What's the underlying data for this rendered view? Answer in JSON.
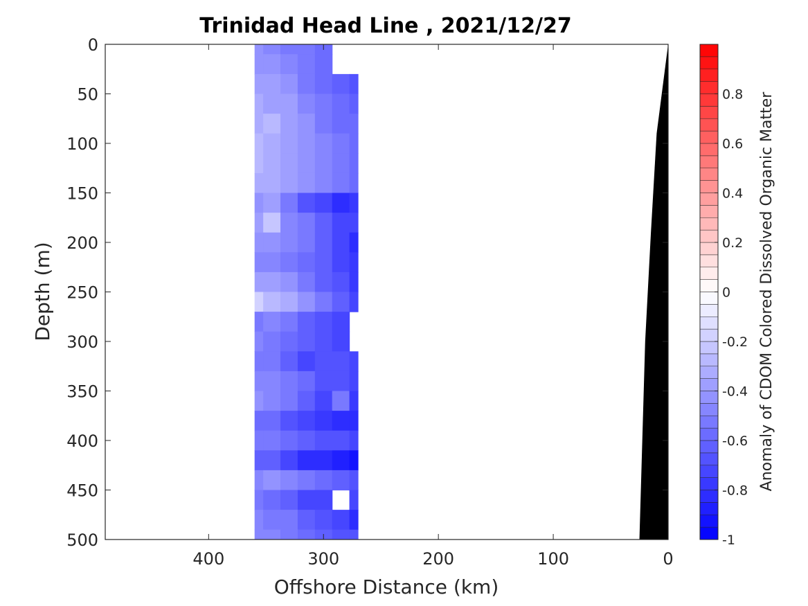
{
  "chart_data": {
    "type": "heatmap",
    "title": "Trinidad Head Line , 2021/12/27",
    "xlabel": "Offshore Distance (km)",
    "ylabel": "Depth (m)",
    "xlim": [
      490,
      0
    ],
    "ylim": [
      0,
      500
    ],
    "x_reversed": true,
    "y_reversed": true,
    "x_ticks": [
      400,
      300,
      200,
      100,
      0
    ],
    "y_ticks": [
      0,
      50,
      100,
      150,
      200,
      250,
      300,
      350,
      400,
      450,
      500
    ],
    "x_tick_labels": [
      "400",
      "300",
      "200",
      "100",
      "0"
    ],
    "y_tick_labels": [
      "0",
      "50",
      "100",
      "150",
      "200",
      "250",
      "300",
      "350",
      "400",
      "450",
      "500"
    ],
    "colorbar": {
      "label": "Anomaly of CDOM Colored Dissolved Organic Matter",
      "range": [
        -1,
        1
      ],
      "levels": 40,
      "ticks": [
        -1,
        -0.8,
        -0.6,
        -0.4,
        -0.2,
        0,
        0.2,
        0.4,
        0.6,
        0.8
      ],
      "tick_labels": [
        "-1",
        "-0.8",
        "-0.6",
        "-0.4",
        "-0.2",
        "0",
        "0.2",
        "0.4",
        "0.6",
        "0.8"
      ],
      "colormap": "blue-white-red",
      "low_color": "#0000ff",
      "mid_color": "#ffffff",
      "high_color": "#ff0000"
    },
    "data_extent": {
      "x_min_km": 270,
      "x_max_km": 360,
      "depth_min_m": 0,
      "depth_max_m": 500
    },
    "columns_x_km": [
      360,
      345,
      330,
      315,
      300,
      285,
      270
    ],
    "rows_depth_m": [
      0,
      20,
      40,
      60,
      80,
      100,
      120,
      140,
      160,
      180,
      200,
      220,
      240,
      260,
      280,
      300,
      320,
      340,
      360,
      380,
      400,
      420,
      440,
      460,
      480,
      500
    ],
    "values": [
      [
        -0.45,
        -0.48,
        -0.52,
        -0.55,
        -0.58,
        null,
        null
      ],
      [
        -0.42,
        -0.45,
        -0.5,
        -0.55,
        -0.6,
        null,
        null
      ],
      [
        -0.38,
        -0.4,
        -0.45,
        -0.52,
        -0.58,
        -0.62,
        -0.66
      ],
      [
        -0.35,
        -0.36,
        -0.4,
        -0.48,
        -0.55,
        -0.6,
        -0.63
      ],
      [
        -0.33,
        -0.3,
        -0.38,
        -0.45,
        -0.52,
        -0.58,
        -0.6
      ],
      [
        -0.3,
        -0.32,
        -0.36,
        -0.44,
        -0.5,
        -0.55,
        -0.6
      ],
      [
        -0.3,
        -0.32,
        -0.36,
        -0.42,
        -0.48,
        -0.54,
        -0.58
      ],
      [
        -0.33,
        -0.34,
        -0.38,
        -0.42,
        -0.48,
        -0.55,
        -0.58
      ],
      [
        -0.45,
        -0.4,
        -0.52,
        -0.7,
        -0.75,
        -0.8,
        -0.78
      ],
      [
        -0.4,
        -0.25,
        -0.48,
        -0.55,
        -0.62,
        -0.72,
        -0.75
      ],
      [
        -0.45,
        -0.42,
        -0.46,
        -0.55,
        -0.65,
        -0.75,
        -0.8
      ],
      [
        -0.5,
        -0.48,
        -0.52,
        -0.58,
        -0.62,
        -0.72,
        -0.76
      ],
      [
        -0.38,
        -0.4,
        -0.45,
        -0.55,
        -0.62,
        -0.7,
        -0.78
      ],
      [
        -0.2,
        -0.28,
        -0.35,
        -0.45,
        -0.55,
        -0.65,
        -0.75
      ],
      [
        -0.55,
        -0.5,
        -0.55,
        -0.62,
        -0.7,
        -0.75,
        null
      ],
      [
        -0.5,
        -0.52,
        -0.58,
        -0.62,
        -0.68,
        -0.72,
        null
      ],
      [
        -0.52,
        -0.55,
        -0.62,
        -0.72,
        -0.66,
        -0.68,
        -0.72
      ],
      [
        -0.48,
        -0.5,
        -0.55,
        -0.6,
        -0.66,
        -0.7,
        -0.74
      ],
      [
        -0.45,
        -0.48,
        -0.55,
        -0.65,
        -0.72,
        -0.55,
        -0.76
      ],
      [
        -0.58,
        -0.6,
        -0.66,
        -0.72,
        -0.78,
        -0.8,
        -0.8
      ],
      [
        -0.55,
        -0.52,
        -0.58,
        -0.62,
        -0.66,
        -0.7,
        -0.74
      ],
      [
        -0.62,
        -0.65,
        -0.72,
        -0.8,
        -0.85,
        -0.88,
        -0.92
      ],
      [
        -0.5,
        -0.45,
        -0.5,
        -0.55,
        -0.6,
        -0.62,
        -0.66
      ],
      [
        -0.55,
        -0.58,
        -0.65,
        -0.72,
        -0.75,
        null,
        -0.72
      ],
      [
        -0.5,
        -0.52,
        -0.55,
        -0.62,
        -0.68,
        -0.72,
        -0.8
      ],
      [
        -0.48,
        -0.5,
        -0.52,
        -0.58,
        -0.62,
        -0.66,
        -0.7
      ]
    ],
    "bathymetry": {
      "fill": "#000000",
      "points": [
        [
          0,
          0
        ],
        [
          10,
          90
        ],
        [
          15,
          190
        ],
        [
          20,
          300
        ],
        [
          25,
          500
        ],
        [
          0,
          500
        ]
      ]
    }
  }
}
